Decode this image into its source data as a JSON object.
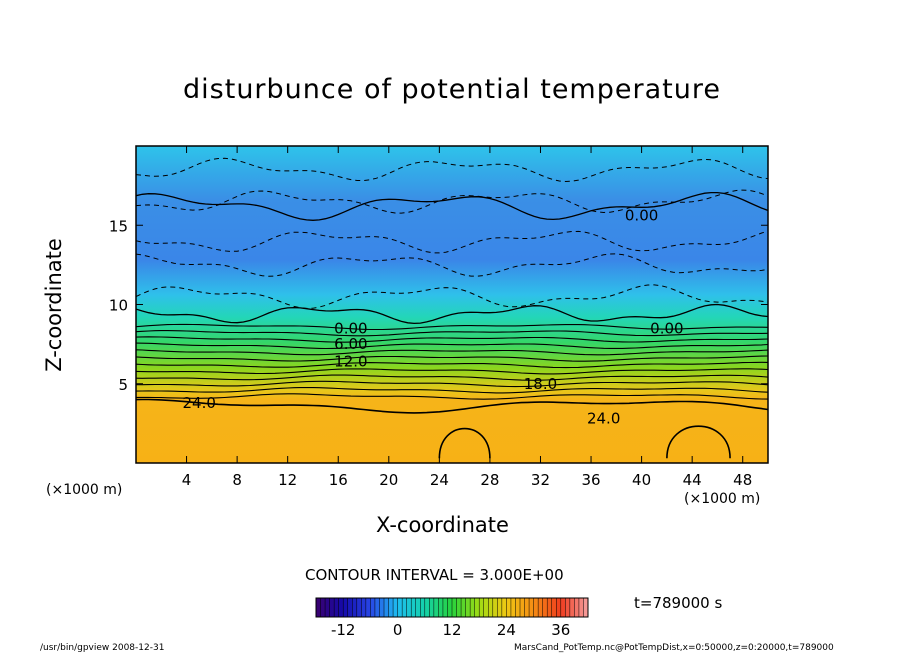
{
  "chart_data": {
    "type": "heatmap",
    "title": "disturbunce of potential temperature",
    "xlabel": "X-coordinate",
    "ylabel": "Z-coordinate",
    "x_unit_left": "(×1000 m)",
    "x_unit_right": "(×1000 m)",
    "xlim": [
      0,
      50
    ],
    "ylim": [
      0,
      20
    ],
    "x_ticks": [
      4,
      8,
      12,
      16,
      20,
      24,
      28,
      32,
      36,
      40,
      44,
      48
    ],
    "y_ticks": [
      5,
      10,
      15
    ],
    "contour_interval_text": "CONTOUR INTERVAL = 3.000E+00",
    "contour_interval": 3,
    "contour_labels": [
      {
        "text": "0.00",
        "x": 17,
        "z": 8.5
      },
      {
        "text": "0.00",
        "x": 42,
        "z": 8.5
      },
      {
        "text": "0.00",
        "x": 40,
        "z": 15.6
      },
      {
        "text": "6.00",
        "x": 17,
        "z": 7.5
      },
      {
        "text": "12.0",
        "x": 17,
        "z": 6.4
      },
      {
        "text": "18.0",
        "x": 32,
        "z": 5.0
      },
      {
        "text": "24.0",
        "x": 5,
        "z": 3.8
      },
      {
        "text": "24.0",
        "x": 37,
        "z": 2.8
      }
    ],
    "colorbar": {
      "min": -18,
      "max": 42,
      "ticks": [
        -12,
        0,
        12,
        24,
        36
      ]
    },
    "time_label": "t=789000 s",
    "legend": "none",
    "grid": false
  },
  "footer": {
    "left": "/usr/bin/gpview   2008-12-31",
    "right": "MarsCand_PotTemp.nc@PotTempDist,x=0:50000,z=0:20000,t=789000"
  },
  "colors": {
    "cold": "#2f6fe0",
    "zero": "#14c8e6",
    "mid": "#2fd86a",
    "warm": "#f4b81a"
  }
}
